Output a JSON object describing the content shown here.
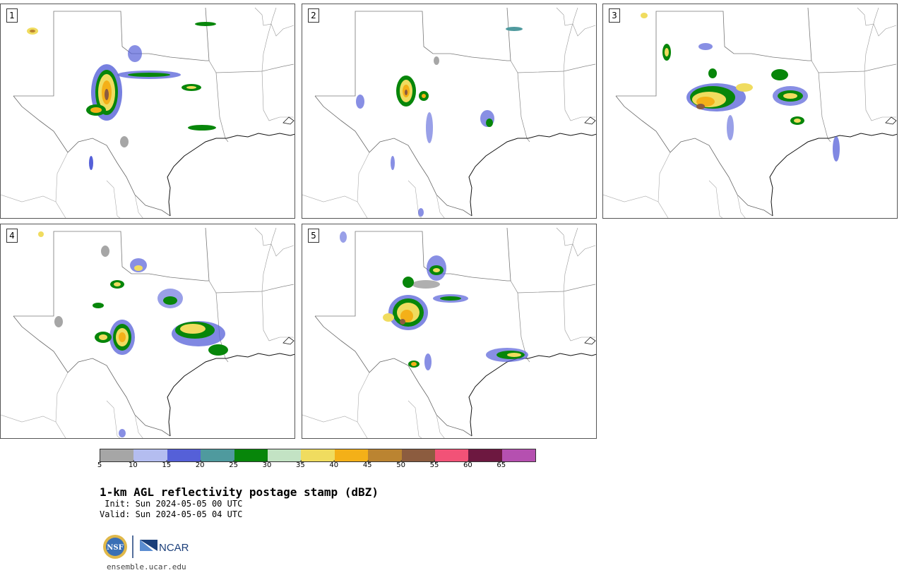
{
  "panels": [
    {
      "label": "1"
    },
    {
      "label": "2"
    },
    {
      "label": "3"
    },
    {
      "label": "4"
    },
    {
      "label": "5"
    }
  ],
  "colorbar": {
    "ticks": [
      "5",
      "10",
      "15",
      "20",
      "25",
      "30",
      "35",
      "40",
      "45",
      "50",
      "55",
      "60",
      "65"
    ],
    "colors": [
      "#a6a6a6",
      "#b4bdf0",
      "#5560d8",
      "#4f9a9e",
      "#07860a",
      "#c3e3c4",
      "#f0dc5f",
      "#f4b018",
      "#bb8431",
      "#8c5c3f",
      "#f25277",
      "#6d1840",
      "#b550b0"
    ]
  },
  "title": "1-km AGL reflectivity postage stamp (dBZ)",
  "init_text": " Init: Sun 2024-05-05 00 UTC",
  "valid_text": "Valid: Sun 2024-05-05 04 UTC",
  "logos": {
    "nsf": "NSF",
    "ncar": "NCAR"
  },
  "url": "ensemble.ucar.edu"
}
